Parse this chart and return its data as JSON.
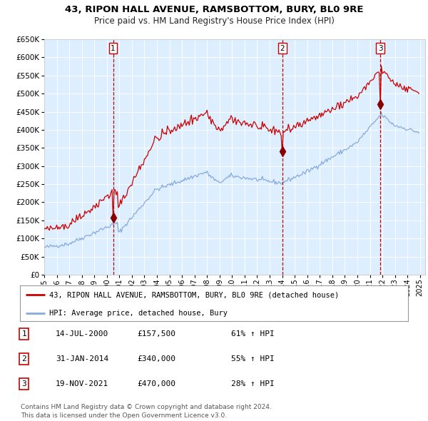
{
  "title1": "43, RIPON HALL AVENUE, RAMSBOTTOM, BURY, BL0 9RE",
  "title2": "Price paid vs. HM Land Registry's House Price Index (HPI)",
  "sale1_date": "14-JUL-2000",
  "sale1_price": 157500,
  "sale1_pct": "61%",
  "sale2_date": "31-JAN-2014",
  "sale2_price": 340000,
  "sale2_pct": "55%",
  "sale3_date": "19-NOV-2021",
  "sale3_price": 470000,
  "sale3_pct": "28%",
  "legend_property": "43, RIPON HALL AVENUE, RAMSBOTTOM, BURY, BL0 9RE (detached house)",
  "legend_hpi": "HPI: Average price, detached house, Bury",
  "footnote1": "Contains HM Land Registry data © Crown copyright and database right 2024.",
  "footnote2": "This data is licensed under the Open Government Licence v3.0.",
  "line_color": "#cc0000",
  "hpi_color": "#88aadd",
  "marker_color": "#880000",
  "vline_color_sold": "#cc0000",
  "vline_color_last": "#cc0000",
  "bg_color": "#ddeeff",
  "ylim": [
    0,
    650000
  ],
  "yticks": [
    0,
    50000,
    100000,
    150000,
    200000,
    250000,
    300000,
    350000,
    400000,
    450000,
    500000,
    550000,
    600000,
    650000
  ],
  "x_start_year": 1995,
  "x_end_year": 2025
}
